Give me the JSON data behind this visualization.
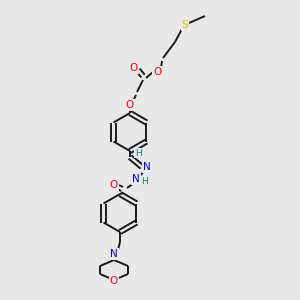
{
  "background_color": "#e8e8e8",
  "bond_color": "#1a1a1a",
  "atom_colors": {
    "O": "#ff0000",
    "N": "#0000cc",
    "S": "#cccc00",
    "H": "#008080",
    "C": "#1a1a1a"
  },
  "figsize": [
    3.0,
    3.0
  ],
  "dpi": 100,
  "lw": 1.4,
  "ring_lw": 1.4,
  "fontsize": 7.5
}
